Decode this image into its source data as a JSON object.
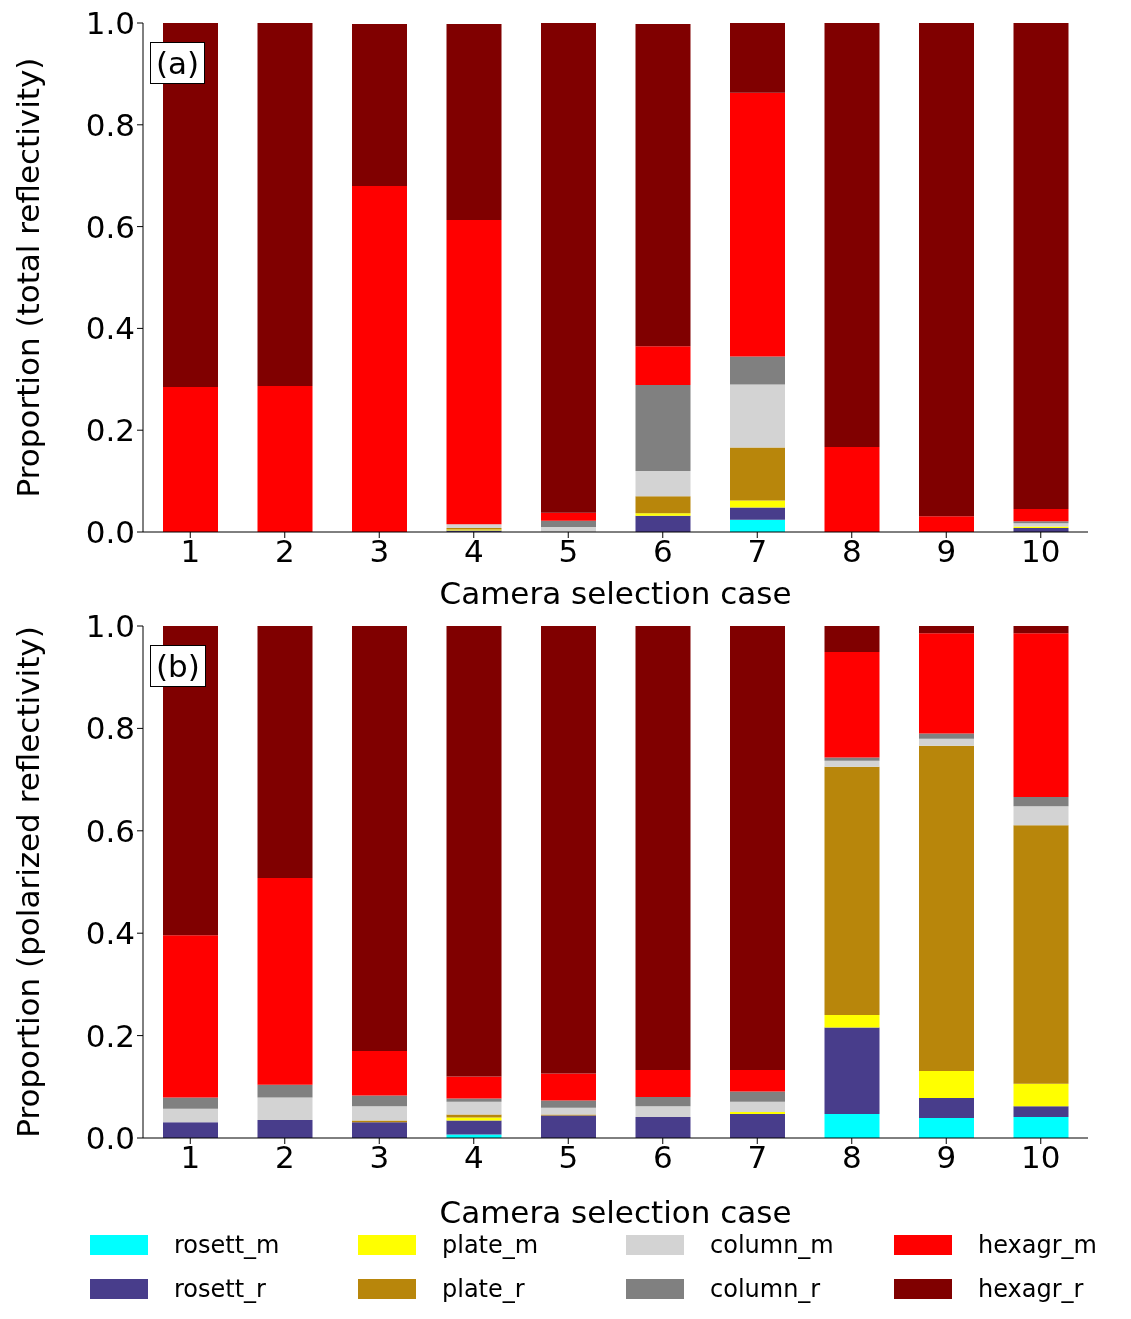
{
  "chart_data": [
    {
      "type": "bar",
      "stacked": true,
      "categories": [
        "1",
        "2",
        "3",
        "4",
        "5",
        "6",
        "7",
        "8",
        "9",
        "10"
      ],
      "xlabel": "Camera selection case",
      "ylabel": "Proportion (total reflectivity)",
      "annotations": [
        "(a)"
      ],
      "ylim": [
        0,
        1
      ],
      "yticks": [
        {
          "value": 0,
          "label": "0.0"
        },
        {
          "value": 0.2,
          "label": "0.2"
        },
        {
          "value": 0.4,
          "label": "0.4"
        },
        {
          "value": 0.6,
          "label": "0.6"
        },
        {
          "value": 0.8,
          "label": "0.8"
        },
        {
          "value": 1,
          "label": "1.0"
        }
      ],
      "grid": false,
      "legend": false,
      "series": [
        {
          "color": "#00ffff",
          "values": [
            0,
            0,
            0,
            null,
            0,
            null,
            0.024,
            0,
            0,
            0
          ]
        },
        {
          "color": "#483d8b",
          "values": [
            0,
            0,
            0,
            0.003,
            0,
            0.032,
            0.024,
            0,
            0,
            0.008
          ]
        },
        {
          "color": "#ffff00",
          "values": [
            0,
            0,
            0,
            0.002,
            0,
            0.005,
            0.014,
            0,
            0,
            0.003
          ]
        },
        {
          "color": "#b8860b",
          "values": [
            0,
            0,
            0,
            0.003,
            0,
            0.033,
            0.104,
            0,
            0,
            0
          ]
        },
        {
          "color": "#d3d3d3",
          "values": [
            0,
            0,
            null,
            0.007,
            0.01,
            0.05,
            0.124,
            0,
            0,
            0.006
          ]
        },
        {
          "color": "#808080",
          "values": [
            0,
            0,
            0,
            0,
            0.012,
            0.169,
            0.055,
            0,
            0,
            0.004
          ]
        },
        {
          "color": "#ff0000",
          "values": [
            0.285,
            0.287,
            0.68,
            0.598,
            0.016,
            0.076,
            0.518,
            0.167,
            0.031,
            0.024
          ]
        },
        {
          "color": "#800000",
          "values": [
            0.715,
            0.713,
            0.318,
            0.385,
            0.962,
            0.633,
            0.137,
            0.833,
            0.969,
            0.955
          ]
        }
      ]
    },
    {
      "type": "bar",
      "stacked": true,
      "categories": [
        "1",
        "2",
        "3",
        "4",
        "5",
        "6",
        "7",
        "8",
        "9",
        "10"
      ],
      "xlabel": "Camera selection case",
      "ylabel": "Proportion (polarized reflectivity)",
      "annotations": [
        "(b)"
      ],
      "ylim": [
        0,
        1
      ],
      "yticks": [
        {
          "value": 0,
          "label": "0.0"
        },
        {
          "value": 0.2,
          "label": "0.2"
        },
        {
          "value": 0.4,
          "label": "0.4"
        },
        {
          "value": 0.6,
          "label": "0.6"
        },
        {
          "value": 0.8,
          "label": "0.8"
        },
        {
          "value": 1,
          "label": "1.0"
        }
      ],
      "grid": false,
      "legend": "bottom",
      "series": [
        {
          "name": "rosett_m",
          "color": "#00ffff",
          "values": [
            0,
            0,
            0,
            0.007,
            0,
            0,
            0,
            0.047,
            0.039,
            0.041
          ]
        },
        {
          "name": "rosett_r",
          "color": "#483d8b",
          "values": [
            0.031,
            0.035,
            0.031,
            0.027,
            0.044,
            0.041,
            0.047,
            0.169,
            0.039,
            0.021
          ]
        },
        {
          "name": "plate_m",
          "color": "#ffff00",
          "values": [
            0,
            0,
            0,
            0.006,
            0,
            0,
            0.004,
            0.024,
            0.053,
            0.044
          ]
        },
        {
          "name": "plate_r",
          "color": "#b8860b",
          "values": [
            0,
            0,
            0.003,
            0.006,
            0.002,
            0,
            0,
            0.485,
            0.635,
            0.505
          ]
        },
        {
          "name": "column_m",
          "color": "#d3d3d3",
          "values": [
            0.026,
            0.044,
            0.028,
            0.025,
            0.013,
            0.021,
            0.02,
            0.012,
            0.014,
            0.037
          ]
        },
        {
          "name": "column_r",
          "color": "#808080",
          "values": [
            0.022,
            0.025,
            0.021,
            0.006,
            0.014,
            0.018,
            0.02,
            0.006,
            0.01,
            0.018
          ]
        },
        {
          "name": "hexagr_m",
          "color": "#ff0000",
          "values": [
            0.317,
            0.404,
            0.087,
            0.043,
            0.053,
            0.053,
            0.042,
            0.206,
            0.196,
            0.32
          ]
        },
        {
          "name": "hexagr_r",
          "color": "#800000",
          "values": [
            0.604,
            0.492,
            0.83,
            0.88,
            0.874,
            0.867,
            0.867,
            0.051,
            0.014,
            0.014
          ]
        }
      ]
    }
  ]
}
